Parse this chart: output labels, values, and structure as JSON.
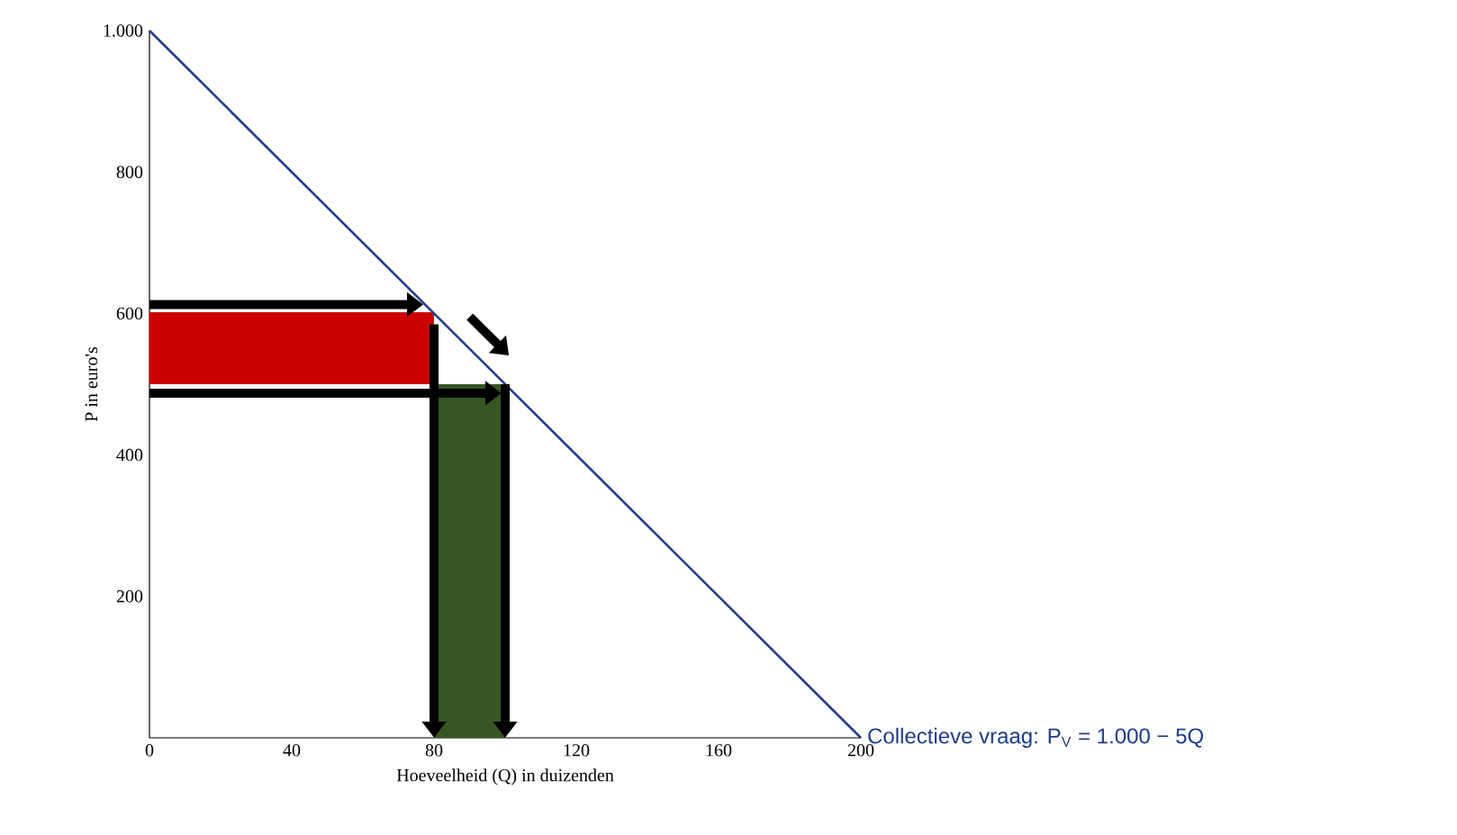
{
  "chart_data": {
    "type": "line",
    "xlabel": "Hoeveelheid (Q) in duizenden",
    "ylabel": "P in euro's",
    "xlim": [
      0,
      200
    ],
    "ylim": [
      0,
      1000
    ],
    "xticks": [
      0,
      40,
      80,
      120,
      160,
      200
    ],
    "yticks": [
      200,
      400,
      600,
      800,
      {
        "value": 1000,
        "label": "1.000"
      }
    ],
    "series": [
      {
        "type": "line",
        "color": "#cc0000",
        "x": [
          0,
          80
        ],
        "values": [
          600,
          600
        ],
        "lower": [
          500,
          500
        ],
        "upper": [
          600,
          600
        ]
      },
      {
        "type": "area",
        "color": "#375623",
        "x": [
          80,
          100
        ],
        "values": [
          500,
          500
        ]
      },
      {
        "name": "Collectieve vraag: P$_{V}$ = 1.000 − 5Q",
        "color": "#1f3c88",
        "x": [
          0,
          200
        ],
        "values": [
          1000,
          0
        ]
      }
    ]
  }
}
